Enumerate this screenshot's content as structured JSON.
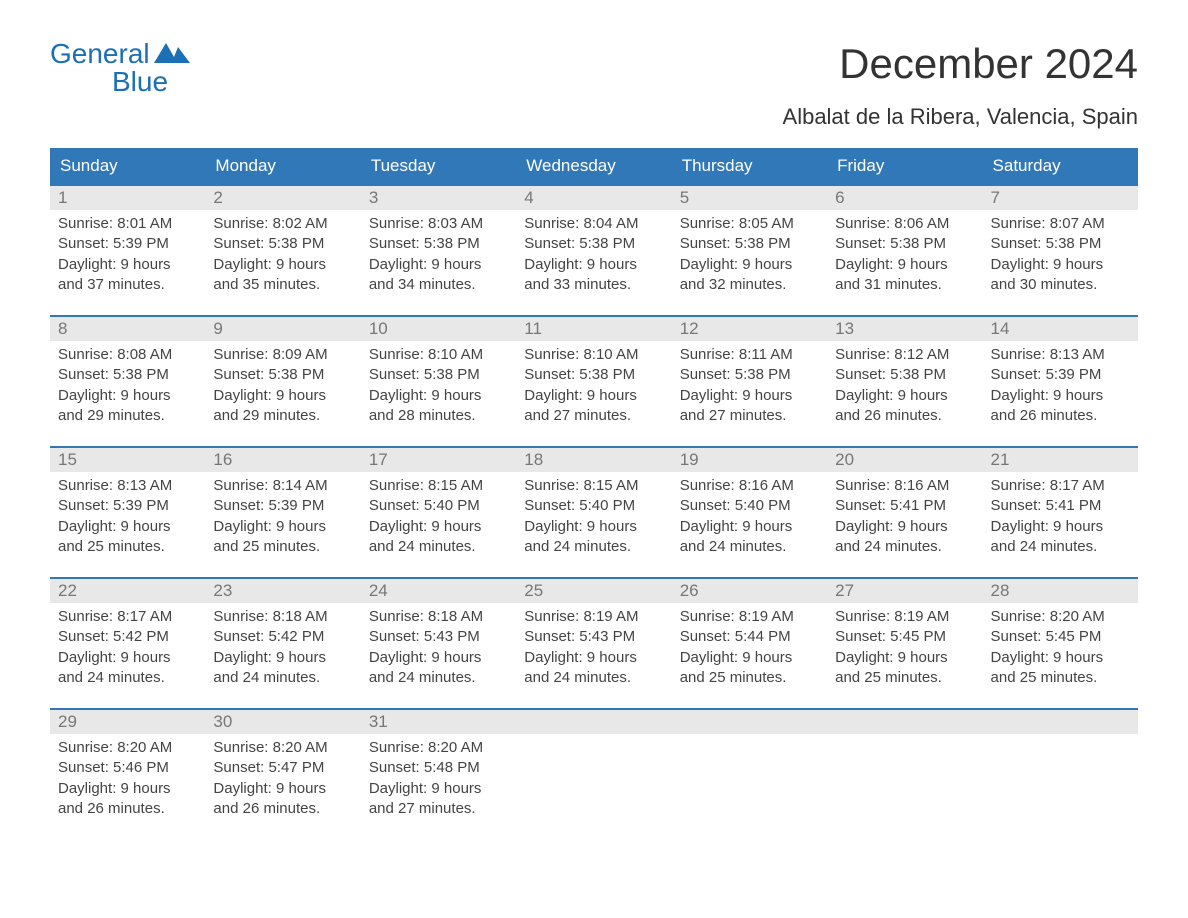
{
  "logo": {
    "word1": "General",
    "word2": "Blue"
  },
  "title": "December 2024",
  "location": "Albalat de la Ribera, Valencia, Spain",
  "colors": {
    "header_bg": "#3178b8",
    "header_text": "#ffffff",
    "daynum_bg": "#e8e8e8",
    "daynum_text": "#777777",
    "body_text": "#444444",
    "divider": "#3178b8"
  },
  "day_headers": [
    "Sunday",
    "Monday",
    "Tuesday",
    "Wednesday",
    "Thursday",
    "Friday",
    "Saturday"
  ],
  "weeks": [
    [
      {
        "day": "1",
        "sunrise": "8:01 AM",
        "sunset": "5:39 PM",
        "daylight": "9 hours and 37 minutes."
      },
      {
        "day": "2",
        "sunrise": "8:02 AM",
        "sunset": "5:38 PM",
        "daylight": "9 hours and 35 minutes."
      },
      {
        "day": "3",
        "sunrise": "8:03 AM",
        "sunset": "5:38 PM",
        "daylight": "9 hours and 34 minutes."
      },
      {
        "day": "4",
        "sunrise": "8:04 AM",
        "sunset": "5:38 PM",
        "daylight": "9 hours and 33 minutes."
      },
      {
        "day": "5",
        "sunrise": "8:05 AM",
        "sunset": "5:38 PM",
        "daylight": "9 hours and 32 minutes."
      },
      {
        "day": "6",
        "sunrise": "8:06 AM",
        "sunset": "5:38 PM",
        "daylight": "9 hours and 31 minutes."
      },
      {
        "day": "7",
        "sunrise": "8:07 AM",
        "sunset": "5:38 PM",
        "daylight": "9 hours and 30 minutes."
      }
    ],
    [
      {
        "day": "8",
        "sunrise": "8:08 AM",
        "sunset": "5:38 PM",
        "daylight": "9 hours and 29 minutes."
      },
      {
        "day": "9",
        "sunrise": "8:09 AM",
        "sunset": "5:38 PM",
        "daylight": "9 hours and 29 minutes."
      },
      {
        "day": "10",
        "sunrise": "8:10 AM",
        "sunset": "5:38 PM",
        "daylight": "9 hours and 28 minutes."
      },
      {
        "day": "11",
        "sunrise": "8:10 AM",
        "sunset": "5:38 PM",
        "daylight": "9 hours and 27 minutes."
      },
      {
        "day": "12",
        "sunrise": "8:11 AM",
        "sunset": "5:38 PM",
        "daylight": "9 hours and 27 minutes."
      },
      {
        "day": "13",
        "sunrise": "8:12 AM",
        "sunset": "5:38 PM",
        "daylight": "9 hours and 26 minutes."
      },
      {
        "day": "14",
        "sunrise": "8:13 AM",
        "sunset": "5:39 PM",
        "daylight": "9 hours and 26 minutes."
      }
    ],
    [
      {
        "day": "15",
        "sunrise": "8:13 AM",
        "sunset": "5:39 PM",
        "daylight": "9 hours and 25 minutes."
      },
      {
        "day": "16",
        "sunrise": "8:14 AM",
        "sunset": "5:39 PM",
        "daylight": "9 hours and 25 minutes."
      },
      {
        "day": "17",
        "sunrise": "8:15 AM",
        "sunset": "5:40 PM",
        "daylight": "9 hours and 24 minutes."
      },
      {
        "day": "18",
        "sunrise": "8:15 AM",
        "sunset": "5:40 PM",
        "daylight": "9 hours and 24 minutes."
      },
      {
        "day": "19",
        "sunrise": "8:16 AM",
        "sunset": "5:40 PM",
        "daylight": "9 hours and 24 minutes."
      },
      {
        "day": "20",
        "sunrise": "8:16 AM",
        "sunset": "5:41 PM",
        "daylight": "9 hours and 24 minutes."
      },
      {
        "day": "21",
        "sunrise": "8:17 AM",
        "sunset": "5:41 PM",
        "daylight": "9 hours and 24 minutes."
      }
    ],
    [
      {
        "day": "22",
        "sunrise": "8:17 AM",
        "sunset": "5:42 PM",
        "daylight": "9 hours and 24 minutes."
      },
      {
        "day": "23",
        "sunrise": "8:18 AM",
        "sunset": "5:42 PM",
        "daylight": "9 hours and 24 minutes."
      },
      {
        "day": "24",
        "sunrise": "8:18 AM",
        "sunset": "5:43 PM",
        "daylight": "9 hours and 24 minutes."
      },
      {
        "day": "25",
        "sunrise": "8:19 AM",
        "sunset": "5:43 PM",
        "daylight": "9 hours and 24 minutes."
      },
      {
        "day": "26",
        "sunrise": "8:19 AM",
        "sunset": "5:44 PM",
        "daylight": "9 hours and 25 minutes."
      },
      {
        "day": "27",
        "sunrise": "8:19 AM",
        "sunset": "5:45 PM",
        "daylight": "9 hours and 25 minutes."
      },
      {
        "day": "28",
        "sunrise": "8:20 AM",
        "sunset": "5:45 PM",
        "daylight": "9 hours and 25 minutes."
      }
    ],
    [
      {
        "day": "29",
        "sunrise": "8:20 AM",
        "sunset": "5:46 PM",
        "daylight": "9 hours and 26 minutes."
      },
      {
        "day": "30",
        "sunrise": "8:20 AM",
        "sunset": "5:47 PM",
        "daylight": "9 hours and 26 minutes."
      },
      {
        "day": "31",
        "sunrise": "8:20 AM",
        "sunset": "5:48 PM",
        "daylight": "9 hours and 27 minutes."
      },
      {
        "day": "",
        "sunrise": "",
        "sunset": "",
        "daylight": ""
      },
      {
        "day": "",
        "sunrise": "",
        "sunset": "",
        "daylight": ""
      },
      {
        "day": "",
        "sunrise": "",
        "sunset": "",
        "daylight": ""
      },
      {
        "day": "",
        "sunrise": "",
        "sunset": "",
        "daylight": ""
      }
    ]
  ],
  "labels": {
    "sunrise": "Sunrise:",
    "sunset": "Sunset:",
    "daylight": "Daylight:"
  }
}
